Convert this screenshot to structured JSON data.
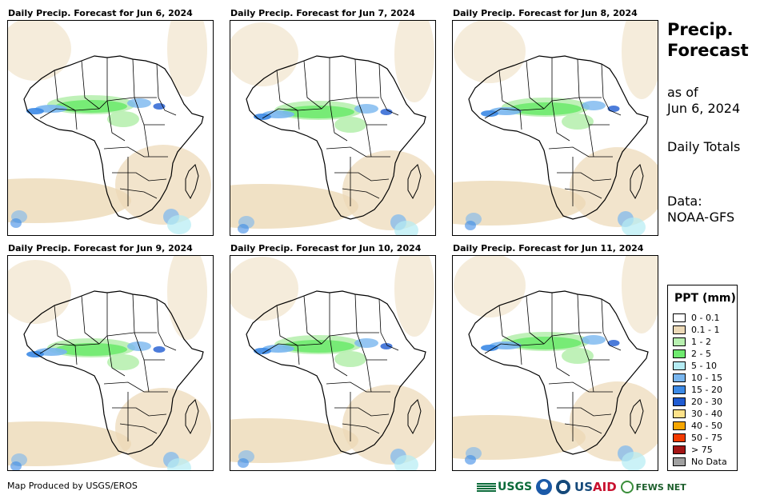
{
  "panels": [
    {
      "title": "Daily Precip. Forecast for Jun 6, 2024"
    },
    {
      "title": "Daily Precip. Forecast for Jun 7, 2024"
    },
    {
      "title": "Daily Precip. Forecast for Jun 8, 2024"
    },
    {
      "title": "Daily Precip. Forecast for Jun 9, 2024"
    },
    {
      "title": "Daily Precip. Forecast for Jun 10, 2024"
    },
    {
      "title": "Daily Precip. Forecast for Jun 11, 2024"
    }
  ],
  "side": {
    "title_line1": "Precip.",
    "title_line2": "Forecast",
    "asof_line1": "as of",
    "asof_line2": "Jun 6, 2024",
    "totals": "Daily Totals",
    "data_line1": "Data:",
    "data_line2": "NOAA-GFS"
  },
  "legend": {
    "title": "PPT (mm)",
    "items": [
      {
        "label": "0 - 0.1",
        "color": "#ffffff"
      },
      {
        "label": "0.1 - 1",
        "color": "#ecd9b7"
      },
      {
        "label": "1 - 2",
        "color": "#b8f0b0"
      },
      {
        "label": "2 - 5",
        "color": "#6fea6f"
      },
      {
        "label": "5 - 10",
        "color": "#b5ecf4"
      },
      {
        "label": "10 - 15",
        "color": "#79b6ef"
      },
      {
        "label": "15 - 20",
        "color": "#3c8ae6"
      },
      {
        "label": "20 - 30",
        "color": "#1f5bd1"
      },
      {
        "label": "30 - 40",
        "color": "#fde28a"
      },
      {
        "label": "40 - 50",
        "color": "#f7a600"
      },
      {
        "label": "50 - 75",
        "color": "#f23a00"
      },
      {
        "label": "> 75",
        "color": "#a31515"
      },
      {
        "label": "No Data",
        "color": "#a0a0a0"
      }
    ]
  },
  "credit": "Map Produced by USGS/EROS",
  "logos": {
    "usgs": "USGS",
    "usaid_us": "US",
    "usaid_aid": "AID",
    "fews": "FEWS NET"
  }
}
